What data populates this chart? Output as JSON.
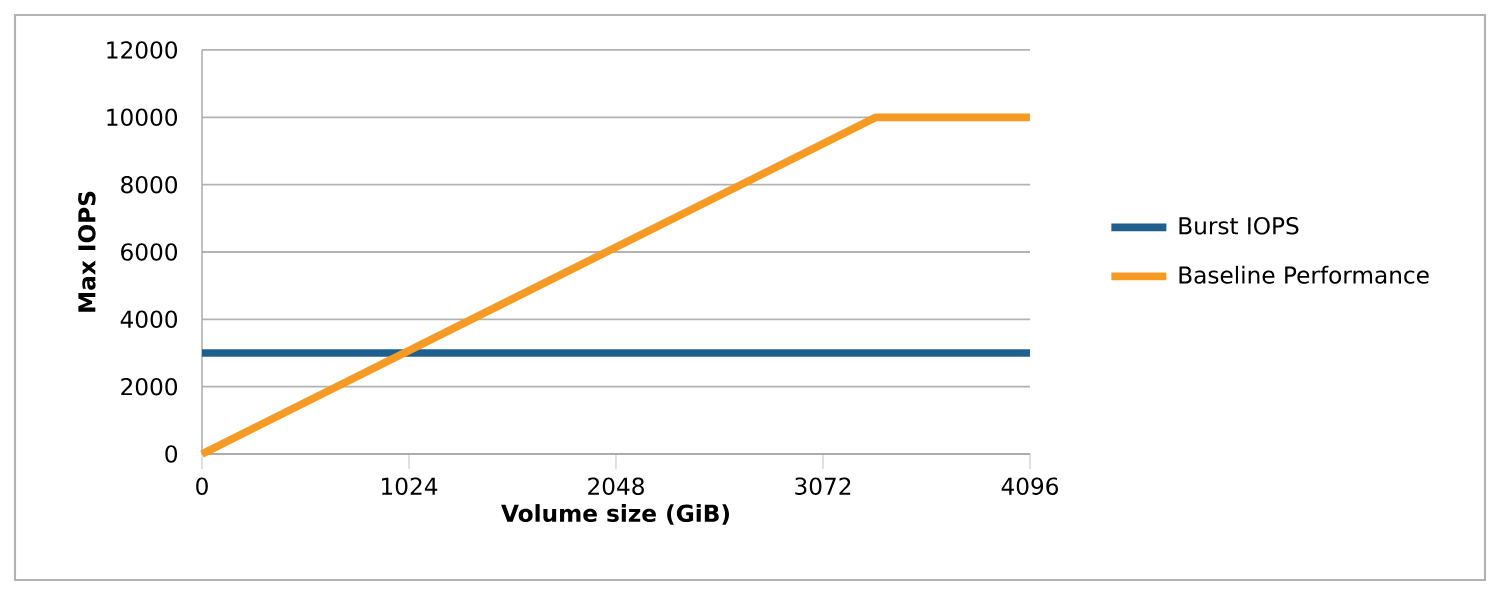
{
  "chart_data": {
    "type": "line",
    "xlabel": "Volume size (GiB)",
    "ylabel": "Max IOPS",
    "series": [
      {
        "name": "Burst IOPS",
        "color": "#1f5f8e",
        "x": [
          0,
          4096
        ],
        "values": [
          3000,
          3000
        ]
      },
      {
        "name": "Baseline Performance",
        "color": "#f59b23",
        "x": [
          0,
          3334,
          4096
        ],
        "values": [
          0,
          10000,
          10000
        ]
      }
    ],
    "xlim": [
      0,
      4096
    ],
    "ylim": [
      0,
      12000
    ],
    "xticks": [
      0,
      1024,
      2048,
      3072,
      4096
    ],
    "yticks": [
      0,
      2000,
      4000,
      6000,
      8000,
      10000,
      12000
    ],
    "grid": "y",
    "legend": "right",
    "marker": "none",
    "line_style": "solid"
  }
}
